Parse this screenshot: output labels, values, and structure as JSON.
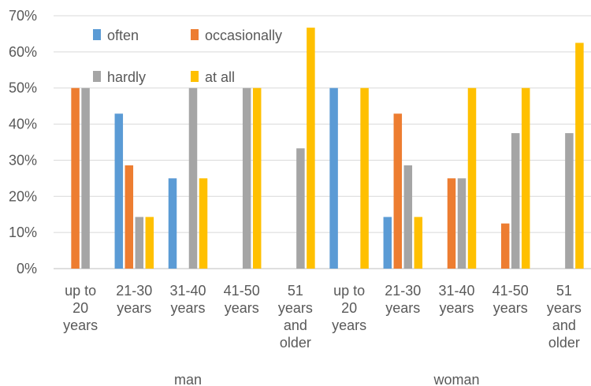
{
  "chart_data": {
    "type": "bar",
    "ylim": [
      0,
      70
    ],
    "ytick_step": 10,
    "ytick_labels": [
      "0%",
      "10%",
      "20%",
      "30%",
      "40%",
      "50%",
      "60%",
      "70%"
    ],
    "grid": true,
    "legend_position": "top-left, inside plot, two columns",
    "groups": [
      {
        "name": "man",
        "categories": [
          {
            "label": [
              "up to",
              "20",
              "years"
            ]
          },
          {
            "label": [
              "21-30",
              "years"
            ]
          },
          {
            "label": [
              "31-40",
              "years"
            ]
          },
          {
            "label": [
              "41-50",
              "years"
            ]
          },
          {
            "label": [
              "51",
              "years",
              "and",
              "older"
            ]
          }
        ]
      },
      {
        "name": "woman",
        "categories": [
          {
            "label": [
              "up to",
              "20",
              "years"
            ]
          },
          {
            "label": [
              "21-30",
              "years"
            ]
          },
          {
            "label": [
              "31-40",
              "years"
            ]
          },
          {
            "label": [
              "41-50",
              "years"
            ]
          },
          {
            "label": [
              "51",
              "years",
              "and",
              "older"
            ]
          }
        ]
      }
    ],
    "series": [
      {
        "name": "often",
        "color": "#5B9BD5",
        "values": [
          0,
          42.9,
          25,
          0,
          0,
          50,
          14.3,
          0,
          0,
          0
        ]
      },
      {
        "name": "occasionally",
        "color": "#ED7D31",
        "values": [
          50,
          28.6,
          0,
          0,
          0,
          0,
          42.9,
          25,
          12.5,
          0
        ]
      },
      {
        "name": "hardly",
        "color": "#A5A5A5",
        "values": [
          50,
          14.3,
          50,
          50,
          33.3,
          0,
          28.6,
          25,
          37.5,
          37.5
        ]
      },
      {
        "name": "at all",
        "color": "#FFC000",
        "values": [
          0,
          14.3,
          25,
          50,
          66.7,
          50,
          14.3,
          50,
          50,
          62.5
        ]
      }
    ]
  }
}
